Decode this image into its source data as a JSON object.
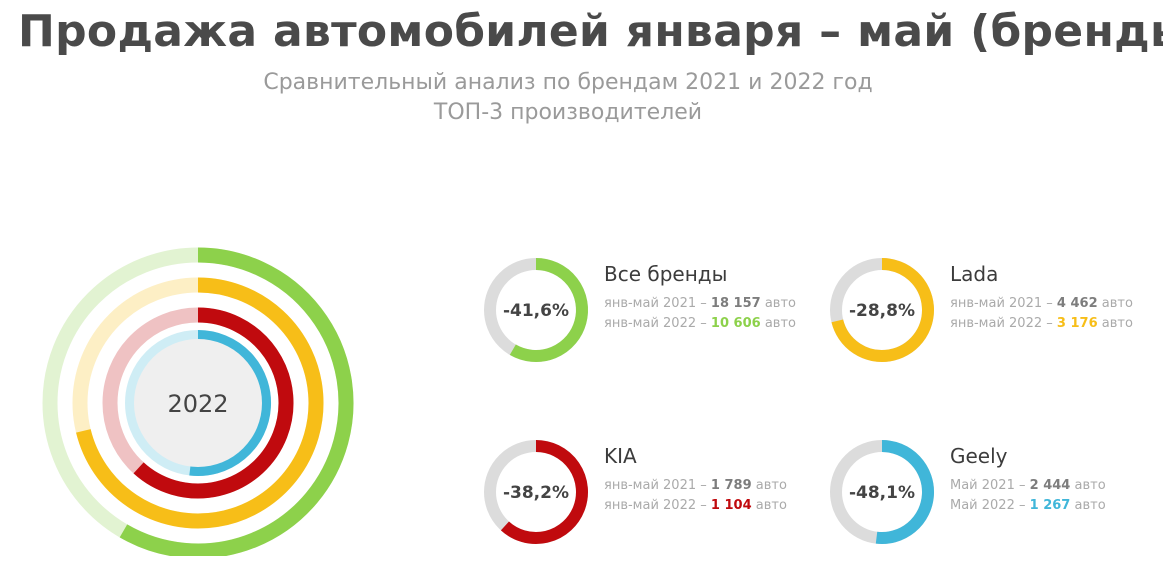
{
  "title": "Продажа автомобилей января – май (бренды)",
  "subtitle_1": "Сравнительный анализ по брендам 2021 и 2022 год",
  "subtitle_2": "ТОП-3 производителей",
  "center_label": "2022",
  "colors": {
    "all": "#8dd14b",
    "lada": "#f7be18",
    "kia": "#c00a0e",
    "geely": "#40b6d9",
    "track": "#dcdcdc"
  },
  "sep": "–",
  "unit": "авто",
  "cards": [
    {
      "name": "Все бренды",
      "change": "-41,6%",
      "line1_label": "янв-май 2021",
      "line1_value": "18 157",
      "line2_label": "янв-май 2022",
      "line2_value": "10 606"
    },
    {
      "name": "Lada",
      "change": "-28,8%",
      "line1_label": "янв-май 2021",
      "line1_value": "4 462",
      "line2_label": "янв-май 2022",
      "line2_value": "3 176"
    },
    {
      "name": "KIA",
      "change": "-38,2%",
      "line1_label": "янв-май 2021",
      "line1_value": "1 789",
      "line2_label": "янв-май 2022",
      "line2_value": "1 104"
    },
    {
      "name": "Geely",
      "change": "-48,1%",
      "line1_label": "Май 2021",
      "line1_value": "2 444",
      "line2_label": "Май 2022",
      "line2_value": "1 267"
    }
  ],
  "chart_data": {
    "type": "radial-bar",
    "series": [
      {
        "name": "Все бренды",
        "value_2021": 18157,
        "value_2022": 10606,
        "change_pct": -41.6,
        "share": 0.584
      },
      {
        "name": "Lada",
        "value_2021": 4462,
        "value_2022": 3176,
        "change_pct": -28.8,
        "share": 0.712
      },
      {
        "name": "KIA",
        "value_2021": 1789,
        "value_2022": 1104,
        "change_pct": -38.2,
        "share": 0.618
      },
      {
        "name": "Geely",
        "value_2021": 2444,
        "value_2022": 1267,
        "change_pct": -48.1,
        "share": 0.519
      }
    ]
  }
}
